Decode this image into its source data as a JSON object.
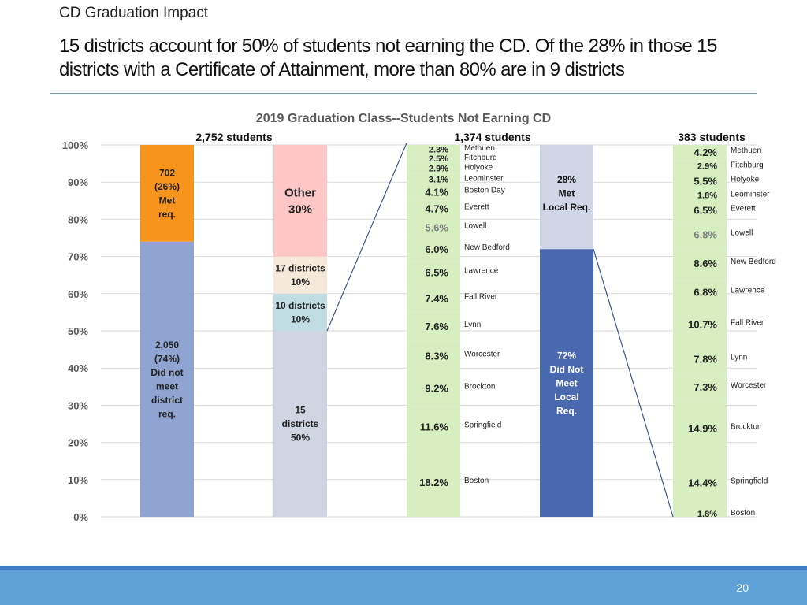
{
  "slide": {
    "kicker": "CD Graduation Impact",
    "headline": "15 districts account for 50% of students not earning the CD. Of the 28% in those 15 districts with a Certificate of Attainment, more than 80% are in 9 districts",
    "page_number": "20"
  },
  "colors": {
    "met_req": "#f7941d",
    "did_not_meet": "#8fa4d1",
    "other": "#fec6c5",
    "seventeen_districts": "#f5e9db",
    "ten_districts": "#bfdde3",
    "fifteen_districts": "#d0d5e2",
    "district_column": "#d6eec0",
    "met_local": "#cfd7e6",
    "did_not_meet_local": "#4a68ae",
    "gridline": "#d9d9d9",
    "connector": "#3d5590"
  },
  "chart_data": {
    "type": "bar",
    "stacked": true,
    "title": "2019 Graduation Class--Students Not Earning CD",
    "ylim": [
      0,
      100
    ],
    "y_ticks": [
      "0%",
      "10%",
      "20%",
      "30%",
      "40%",
      "50%",
      "60%",
      "70%",
      "80%",
      "90%",
      "100%"
    ],
    "grid": true,
    "bars": [
      {
        "header": "2,752 students",
        "segments": [
          {
            "id": "bar1-seg1",
            "value": 74,
            "color_key": "did_not_meet",
            "label": [
              "2,050",
              "(74%)",
              "Did not",
              "meet",
              "district",
              "req."
            ]
          },
          {
            "id": "bar1-seg2",
            "value": 26,
            "color_key": "met_req",
            "label": [
              "702",
              "(26%)",
              "Met",
              "req."
            ]
          }
        ]
      },
      {
        "header": "",
        "segments": [
          {
            "id": "bar2-seg1",
            "value": 50,
            "color_key": "fifteen_districts",
            "label": [
              "15",
              "districts",
              "50%"
            ]
          },
          {
            "id": "bar2-seg2",
            "value": 10,
            "color_key": "ten_districts",
            "label": [
              "10 districts",
              "10%"
            ]
          },
          {
            "id": "bar2-seg3",
            "value": 10,
            "color_key": "seventeen_districts",
            "label": [
              "17 districts",
              "10%"
            ]
          },
          {
            "id": "bar2-seg4",
            "value": 30,
            "color_key": "other",
            "label": [
              "Other",
              "30%"
            ]
          }
        ]
      },
      {
        "header": "1,374 students",
        "segments": [
          {
            "id": "bar3-seg1",
            "value": 18.2,
            "pct": "18.2%",
            "district": "Boston"
          },
          {
            "id": "bar3-seg2",
            "value": 11.6,
            "pct": "11.6%",
            "district": "Springfield"
          },
          {
            "id": "bar3-seg3",
            "value": 9.2,
            "pct": "9.2%",
            "district": "Brockton"
          },
          {
            "id": "bar3-seg4",
            "value": 8.3,
            "pct": "8.3%",
            "district": "Worcester"
          },
          {
            "id": "bar3-seg5",
            "value": 7.6,
            "pct": "7.6%",
            "district": "Lynn"
          },
          {
            "id": "bar3-seg6",
            "value": 7.4,
            "pct": "7.4%",
            "district": "Fall River"
          },
          {
            "id": "bar3-seg7",
            "value": 6.5,
            "pct": "6.5%",
            "district": "Lawrence"
          },
          {
            "id": "bar3-seg8",
            "value": 6.0,
            "pct": "6.0%",
            "district": "New Bedford"
          },
          {
            "id": "bar3-seg9",
            "value": 5.6,
            "pct": "5.6%",
            "district": "Lowell"
          },
          {
            "id": "bar3-seg10",
            "value": 4.7,
            "pct": "4.7%",
            "district": "Everett"
          },
          {
            "id": "bar3-seg11",
            "value": 4.1,
            "pct": "4.1%",
            "district": "Boston Day"
          },
          {
            "id": "bar3-seg12",
            "value": 3.1,
            "pct": "3.1%",
            "district": "Leominster"
          },
          {
            "id": "bar3-seg13",
            "value": 2.9,
            "pct": "2.9%",
            "district": "Holyoke"
          },
          {
            "id": "bar3-seg14",
            "value": 2.5,
            "pct": "2.5%",
            "district": "Fitchburg"
          },
          {
            "id": "bar3-seg15",
            "value": 2.3,
            "pct": "2.3%",
            "district": "Methuen"
          }
        ]
      },
      {
        "header": "",
        "segments": [
          {
            "id": "bar4-seg1",
            "value": 72,
            "color_key": "did_not_meet_local",
            "label": [
              "72%",
              "Did Not",
              "Meet",
              "Local",
              "Req."
            ]
          },
          {
            "id": "bar4-seg2",
            "value": 28,
            "color_key": "met_local",
            "label": [
              "28%",
              "Met",
              "Local Req."
            ]
          }
        ]
      },
      {
        "header": "383 students",
        "segments": [
          {
            "id": "bar5-seg1",
            "value": 1.8,
            "pct": "1.8%",
            "district": "Boston"
          },
          {
            "id": "bar5-seg2",
            "value": 14.4,
            "pct": "14.4%",
            "district": "Springfield"
          },
          {
            "id": "bar5-seg3",
            "value": 14.9,
            "pct": "14.9%",
            "district": "Brockton"
          },
          {
            "id": "bar5-seg4",
            "value": 7.3,
            "pct": "7.3%",
            "district": "Worcester"
          },
          {
            "id": "bar5-seg5",
            "value": 7.8,
            "pct": "7.8%",
            "district": "Lynn"
          },
          {
            "id": "bar5-seg6",
            "value": 10.7,
            "pct": "10.7%",
            "district": "Fall River"
          },
          {
            "id": "bar5-seg7",
            "value": 6.8,
            "pct": "6.8%",
            "district": "Lawrence"
          },
          {
            "id": "bar5-seg8",
            "value": 8.6,
            "pct": "8.6%",
            "district": "New Bedford"
          },
          {
            "id": "bar5-seg9",
            "value": 6.8,
            "pct": "6.8%",
            "district": "Lowell"
          },
          {
            "id": "bar5-seg10",
            "value": 6.5,
            "pct": "6.5%",
            "district": "Everett"
          },
          {
            "id": "bar5-seg11",
            "value": 1.8,
            "pct": "1.8%",
            "district": "Leominster"
          },
          {
            "id": "bar5-seg12",
            "value": 5.5,
            "pct": "5.5%",
            "district": "Holyoke"
          },
          {
            "id": "bar5-seg13",
            "value": 2.9,
            "pct": "2.9%",
            "district": "Fitchburg"
          },
          {
            "id": "bar5-seg14",
            "value": 4.2,
            "pct": "4.2%",
            "district": "Methuen"
          }
        ]
      }
    ]
  }
}
